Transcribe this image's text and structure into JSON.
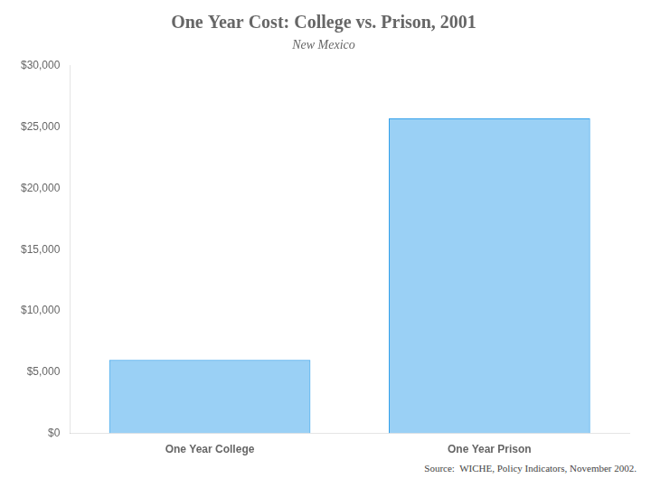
{
  "chart_data": {
    "type": "bar",
    "title": "One Year Cost: College vs. Prison, 2001",
    "subtitle": "New Mexico",
    "source": "Source:  WICHE, Policy Indicators, November 2002.",
    "categories": [
      "One Year College",
      "One Year Prison"
    ],
    "values": [
      6000,
      25700
    ],
    "ylim": [
      0,
      30000
    ],
    "yticks": [
      {
        "value": 0,
        "label": "$0"
      },
      {
        "value": 5000,
        "label": "$5,000"
      },
      {
        "value": 10000,
        "label": "$10,000"
      },
      {
        "value": 15000,
        "label": "$15,000"
      },
      {
        "value": 20000,
        "label": "$20,000"
      },
      {
        "value": 25000,
        "label": "$25,000"
      },
      {
        "value": 30000,
        "label": "$30,000"
      }
    ],
    "grid": false
  }
}
